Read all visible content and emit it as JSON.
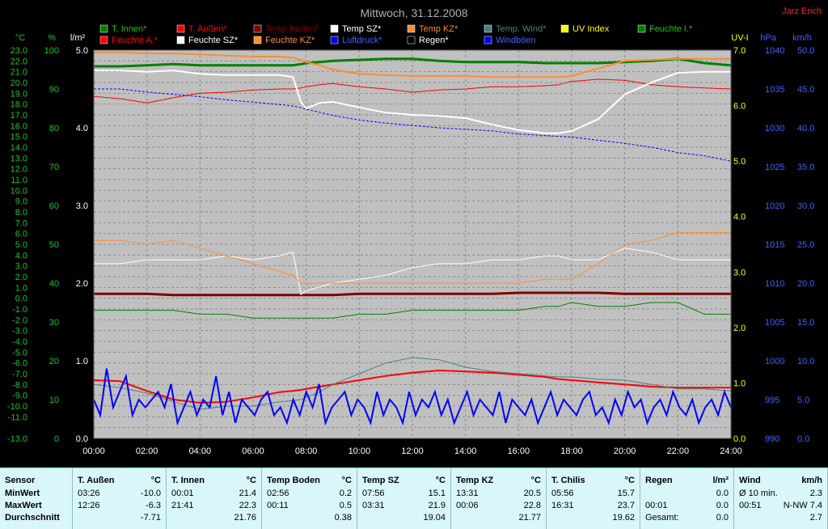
{
  "header": {
    "title": "Mittwoch, 31.12.2008",
    "author": "Jarz Erich"
  },
  "legend": [
    {
      "label": "T. Innen*",
      "color": "#008000"
    },
    {
      "label": "T. Außen*",
      "color": "#ff0000"
    },
    {
      "label": "Temp Boden*",
      "color": "#800000"
    },
    {
      "label": "Temp SZ*",
      "color": "#ffffff"
    },
    {
      "label": "Temp KZ*",
      "color": "#ff8c2e"
    },
    {
      "label": "Temp. Wind*",
      "color": "#4a8080"
    },
    {
      "label": "UV Index",
      "color": "#ffff00"
    },
    {
      "label": "Feuchte I.*",
      "color": "#008000"
    },
    {
      "label": "Feuchte A.*",
      "color": "#ff0000"
    },
    {
      "label": "Feuchte SZ*",
      "color": "#ffffff"
    },
    {
      "label": "Feuchte KZ*",
      "color": "#ff8c2e"
    },
    {
      "label": "Luftdruck*",
      "color": "#0000ff"
    },
    {
      "label": "Regen*",
      "color": "#000000"
    },
    {
      "label": "Windböen",
      "color": "#0000ff"
    }
  ],
  "chart_data": {
    "type": "line",
    "title": "Mittwoch, 31.12.2008",
    "x_ticks": [
      "00:00",
      "02:00",
      "04:00",
      "06:00",
      "08:00",
      "10:00",
      "12:00",
      "14:00",
      "16:00",
      "18:00",
      "20:00",
      "22:00",
      "24:00"
    ],
    "axes": {
      "temp": {
        "unit": "°C",
        "min": -13,
        "max": 23,
        "ticks": [
          "23.0",
          "22.0",
          "21.0",
          "20.0",
          "19.0",
          "18.0",
          "17.0",
          "16.0",
          "15.0",
          "14.0",
          "13.0",
          "12.0",
          "11.0",
          "10.0",
          "9.0",
          "8.0",
          "7.0",
          "6.0",
          "5.0",
          "4.0",
          "3.0",
          "2.0",
          "1.0",
          "0.0",
          "-1.0",
          "-2.0",
          "-3.0",
          "-4.0",
          "-5.0",
          "-6.0",
          "-7.0",
          "-8.0",
          "-9.0",
          "-10.0",
          "-11.0",
          "-13.0"
        ]
      },
      "humidity": {
        "unit": "%",
        "min": 0,
        "max": 100,
        "ticks": [
          "100",
          "90",
          "80",
          "70",
          "60",
          "50",
          "40",
          "30",
          "20",
          "10",
          "0"
        ]
      },
      "rain": {
        "unit": "l/m²",
        "min": 0,
        "max": 5,
        "ticks": [
          "5.0",
          "4.0",
          "3.0",
          "2.0",
          "1.0",
          "0.0"
        ]
      },
      "uv": {
        "unit": "UV-I",
        "min": 0,
        "max": 7,
        "ticks": [
          "7.0",
          "6.0",
          "5.0",
          "4.0",
          "3.0",
          "2.0",
          "1.0",
          "0.0"
        ]
      },
      "pressure": {
        "unit": "hPa",
        "min": 990,
        "max": 1040,
        "ticks": [
          "1040",
          "1035",
          "1030",
          "1025",
          "1020",
          "1015",
          "1010",
          "1005",
          "1000",
          "995",
          "990"
        ]
      },
      "wind": {
        "unit": "km/h",
        "min": 0,
        "max": 50,
        "ticks": [
          "50.0",
          "45.0",
          "40.0",
          "35.0",
          "30.0",
          "25.0",
          "20.0",
          "15.0",
          "10.0",
          "5.0",
          "0.0"
        ]
      }
    },
    "x_hours": [
      0,
      1,
      2,
      3,
      4,
      5,
      6,
      7,
      7.5,
      7.8,
      8,
      8.5,
      9,
      10,
      11,
      12,
      13,
      14,
      15,
      16,
      17,
      17.5,
      18,
      19,
      20,
      21,
      22,
      23,
      24
    ],
    "series": [
      {
        "name": "T. Innen*",
        "axis": "temp",
        "color": "#008000",
        "width": 3,
        "values": [
          21.5,
          21.5,
          21.6,
          21.7,
          21.6,
          21.6,
          21.6,
          21.6,
          21.6,
          21.7,
          21.8,
          21.9,
          22.0,
          22.1,
          22.2,
          22.2,
          22.0,
          21.9,
          21.9,
          21.9,
          21.8,
          21.8,
          21.8,
          21.8,
          21.9,
          22.0,
          22.2,
          21.8,
          21.6
        ]
      },
      {
        "name": "T. Außen*",
        "axis": "temp",
        "color": "#ff0000",
        "width": 1,
        "values": [
          18.7,
          18.5,
          18.1,
          18.6,
          19.0,
          19.1,
          19.3,
          19.4,
          19.4,
          19.5,
          19.6,
          19.8,
          19.9,
          19.6,
          19.4,
          19.1,
          19.3,
          19.4,
          19.6,
          19.6,
          19.7,
          19.8,
          20.1,
          20.3,
          20.2,
          19.8,
          19.6,
          19.5,
          19.4
        ]
      },
      {
        "name": "Temp Boden*",
        "axis": "temp",
        "color": "#800000",
        "width": 3,
        "values": [
          0.4,
          0.4,
          0.4,
          0.3,
          0.3,
          0.3,
          0.3,
          0.3,
          0.3,
          0.3,
          0.3,
          0.3,
          0.3,
          0.4,
          0.4,
          0.4,
          0.4,
          0.4,
          0.4,
          0.5,
          0.5,
          0.5,
          0.5,
          0.5,
          0.4,
          0.4,
          0.4,
          0.4,
          0.4
        ]
      },
      {
        "name": "Temp SZ*",
        "axis": "temp",
        "color": "#ffffff",
        "width": 2,
        "values": [
          21.1,
          21.1,
          21.0,
          21.1,
          20.8,
          20.7,
          20.7,
          20.7,
          20.5,
          18.2,
          17.6,
          18.1,
          18.2,
          17.7,
          17.2,
          17.0,
          16.9,
          16.7,
          16.1,
          15.6,
          15.3,
          15.3,
          15.5,
          16.6,
          18.9,
          20.0,
          20.9,
          21.0,
          21.0
        ]
      },
      {
        "name": "Temp KZ*",
        "axis": "temp",
        "color": "#ff8c2e",
        "width": 2,
        "values": [
          22.8,
          22.8,
          22.7,
          22.7,
          22.6,
          22.5,
          22.4,
          22.4,
          22.3,
          22.1,
          21.9,
          21.6,
          21.2,
          20.8,
          20.7,
          20.6,
          20.6,
          20.6,
          20.5,
          20.5,
          20.5,
          20.5,
          20.6,
          21.3,
          22.0,
          22.1,
          22.2,
          22.2,
          22.2
        ]
      },
      {
        "name": "Luftdruck*",
        "axis": "pressure",
        "color": "#0000ff",
        "width": 1,
        "dashed": true,
        "values": [
          1035.0,
          1035.0,
          1034.6,
          1034.3,
          1034.0,
          1033.6,
          1033.3,
          1033.0,
          1032.8,
          1032.6,
          1032.4,
          1032.0,
          1031.6,
          1031.0,
          1030.6,
          1030.3,
          1030.0,
          1029.8,
          1029.6,
          1029.2,
          1029.0,
          1028.9,
          1028.8,
          1028.4,
          1028.0,
          1027.5,
          1026.8,
          1026.4,
          1025.7
        ]
      },
      {
        "name": "Feuchte I.*",
        "axis": "humidity",
        "color": "#008000",
        "width": 1,
        "values": [
          33,
          33,
          33,
          33,
          32,
          32,
          31,
          31,
          31,
          31,
          31,
          31,
          31,
          32,
          32,
          33,
          33,
          33,
          33,
          33,
          34,
          34,
          35,
          34,
          34,
          35,
          35,
          32,
          32
        ]
      },
      {
        "name": "Feuchte A.*",
        "axis": "humidity",
        "color": "#ff0000",
        "width": 2,
        "axis2": "temp",
        "values": [
          -7.6,
          -7.7,
          -8.6,
          -9.4,
          -9.7,
          -9.6,
          -9.2,
          -8.7,
          -8.6,
          -8.5,
          -8.4,
          -8.2,
          -8.0,
          -7.6,
          -7.2,
          -6.9,
          -6.7,
          -6.8,
          -6.9,
          -7.1,
          -7.3,
          -7.5,
          -7.6,
          -7.8,
          -8.0,
          -8.2,
          -8.3,
          -8.3,
          -8.3
        ]
      },
      {
        "name": "Feuchte SZ*",
        "axis": "humidity",
        "color": "#ffffff",
        "width": 1,
        "values": [
          45,
          45,
          46,
          46,
          46,
          47,
          46,
          47,
          48,
          37,
          38,
          39,
          40,
          41,
          42,
          44,
          45,
          45,
          46,
          46,
          47,
          47,
          46,
          46,
          49,
          48,
          46,
          46,
          46
        ]
      },
      {
        "name": "Feuchte KZ*",
        "axis": "humidity",
        "color": "#ff8c2e",
        "width": 1,
        "values": [
          51,
          51,
          50,
          51,
          49,
          47,
          45,
          43,
          42,
          40,
          40,
          40,
          40,
          40,
          40,
          40,
          40,
          40,
          40,
          40,
          41,
          41,
          41,
          45,
          50,
          51,
          53,
          53,
          53
        ]
      },
      {
        "name": "Temp. Wind*",
        "axis": "temp",
        "color": "#4a8080",
        "width": 1,
        "values": [
          -8.0,
          -8.3,
          -8.8,
          -9.6,
          -10.3,
          -10.0,
          -10.0,
          -9.6,
          -9.5,
          -9.4,
          -9.2,
          -8.7,
          -8.0,
          -7.0,
          -6.0,
          -5.5,
          -5.7,
          -6.4,
          -6.8,
          -7.0,
          -7.2,
          -7.3,
          -7.3,
          -7.5,
          -7.6,
          -8.0,
          -8.4,
          -8.4,
          -8.6
        ]
      }
    ],
    "gusts": {
      "name": "Windböen",
      "axis": "wind",
      "color": "#0000ff",
      "values": [
        5,
        3,
        9,
        4,
        6,
        8,
        3,
        5,
        4,
        5,
        6,
        4,
        7,
        2,
        4,
        6,
        3,
        5,
        4,
        8,
        3,
        6,
        2,
        5,
        4,
        3,
        5,
        6,
        3,
        4,
        2,
        5,
        3,
        6,
        4,
        7,
        2,
        4,
        5,
        6,
        3,
        5,
        4,
        2,
        6,
        3,
        5,
        4,
        2,
        6,
        3,
        5,
        4,
        6,
        3,
        5,
        2,
        4,
        6,
        3,
        5,
        4,
        3,
        6,
        2,
        5,
        4,
        3,
        5,
        2,
        4,
        6,
        3,
        5,
        4,
        3,
        5,
        6,
        3,
        4,
        2,
        5,
        3,
        6,
        4,
        5,
        2,
        4,
        5,
        3,
        6,
        4,
        3,
        5,
        2,
        4,
        5,
        3,
        6,
        4
      ]
    }
  },
  "stats": {
    "columns": [
      {
        "name": "Sensor",
        "unit": "",
        "rows": [
          [
            "MinWert",
            "",
            ""
          ],
          [
            "MaxWert",
            "",
            ""
          ],
          [
            "Durchschnitt",
            "",
            ""
          ]
        ]
      },
      {
        "name": "T. Außen",
        "unit": "°C",
        "rows": [
          [
            "03:26",
            "-10.0"
          ],
          [
            "12:26",
            "-6.3"
          ],
          [
            "",
            "-7.71"
          ]
        ]
      },
      {
        "name": "T. Innen",
        "unit": "°C",
        "rows": [
          [
            "00:01",
            "21.4"
          ],
          [
            "21:41",
            "22.3"
          ],
          [
            "",
            "21.76"
          ]
        ]
      },
      {
        "name": "Temp Boden",
        "unit": "°C",
        "rows": [
          [
            "02:56",
            "0.2"
          ],
          [
            "00:11",
            "0.5"
          ],
          [
            "",
            "0.38"
          ]
        ]
      },
      {
        "name": "Temp SZ",
        "unit": "°C",
        "rows": [
          [
            "07:56",
            "15.1"
          ],
          [
            "03:31",
            "21.9"
          ],
          [
            "",
            "19.04"
          ]
        ]
      },
      {
        "name": "Temp KZ",
        "unit": "°C",
        "rows": [
          [
            "13:31",
            "20.5"
          ],
          [
            "00:06",
            "22.8"
          ],
          [
            "",
            "21.77"
          ]
        ]
      },
      {
        "name": "T. Chilis",
        "unit": "°C",
        "rows": [
          [
            "05:56",
            "15.7"
          ],
          [
            "16:31",
            "23.7"
          ],
          [
            "",
            "19.62"
          ]
        ]
      },
      {
        "name": "Regen",
        "unit": "l/m²",
        "rows": [
          [
            "",
            "0.0"
          ],
          [
            "00:01",
            "0.0"
          ],
          [
            "Gesamt:",
            "0.0"
          ]
        ]
      },
      {
        "name": "Wind",
        "unit": "km/h",
        "rows": [
          [
            "Ø 10 min.",
            "2.3"
          ],
          [
            "00:51",
            "N-NW 7.4"
          ],
          [
            "",
            "2.7"
          ]
        ]
      }
    ]
  }
}
